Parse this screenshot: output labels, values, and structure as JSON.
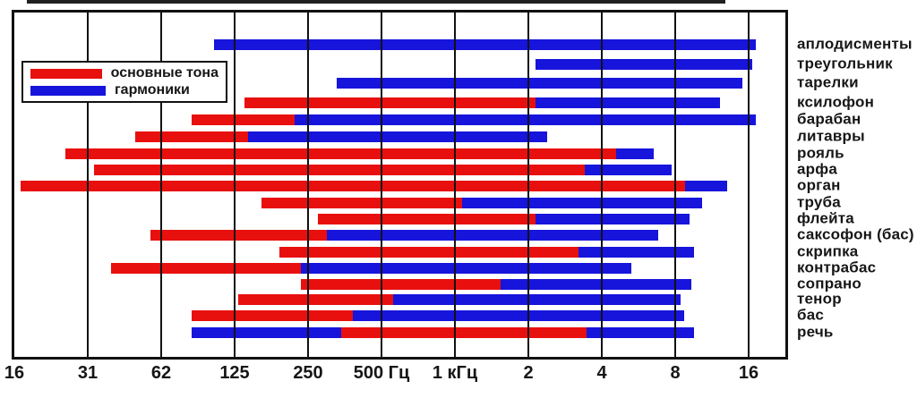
{
  "chart_data": {
    "type": "bar",
    "variant": "horizontal-range-bars-log-x",
    "title": "",
    "x_axis": {
      "scale": "log2-octaves",
      "unit": "Hz",
      "range_hz": [
        16,
        23000
      ],
      "ticks": [
        "16",
        "31",
        "62",
        "125",
        "250",
        "500 Гц",
        "1 кГц",
        "2",
        "4",
        "8",
        "16"
      ]
    },
    "grid": "vertical-octave-lines",
    "legend_position": "top-left-inside",
    "legend": [
      {
        "key": "fundamental",
        "label": "основные тона",
        "color": "#e8100e"
      },
      {
        "key": "harmonics",
        "label": "гармоники",
        "color": "#1714dc"
      }
    ],
    "rows": [
      {
        "label": "аплодисменты",
        "segments": [
          {
            "kind": "harmonics",
            "from_hz": 105,
            "to_hz": 17500
          }
        ]
      },
      {
        "label": "треугольник",
        "segments": [
          {
            "kind": "harmonics",
            "from_hz": 2200,
            "to_hz": 17000
          }
        ]
      },
      {
        "label": "тарелки",
        "segments": [
          {
            "kind": "harmonics",
            "from_hz": 335,
            "to_hz": 15500
          }
        ]
      },
      {
        "label": "ксилофон",
        "segments": [
          {
            "kind": "fundamental",
            "from_hz": 140,
            "to_hz": 2200
          },
          {
            "kind": "harmonics",
            "from_hz": 2200,
            "to_hz": 12500
          }
        ]
      },
      {
        "label": "барабан",
        "segments": [
          {
            "kind": "fundamental",
            "from_hz": 85,
            "to_hz": 225
          },
          {
            "kind": "harmonics",
            "from_hz": 225,
            "to_hz": 17500
          }
        ]
      },
      {
        "label": "литавры",
        "segments": [
          {
            "kind": "fundamental",
            "from_hz": 50,
            "to_hz": 145
          },
          {
            "kind": "harmonics",
            "from_hz": 145,
            "to_hz": 2450
          }
        ]
      },
      {
        "label": "рояль",
        "segments": [
          {
            "kind": "fundamental",
            "from_hz": 26,
            "to_hz": 4700
          },
          {
            "kind": "harmonics",
            "from_hz": 4700,
            "to_hz": 6700
          }
        ]
      },
      {
        "label": "арфа",
        "segments": [
          {
            "kind": "fundamental",
            "from_hz": 34,
            "to_hz": 3500
          },
          {
            "kind": "harmonics",
            "from_hz": 3500,
            "to_hz": 7900
          }
        ]
      },
      {
        "label": "орган",
        "segments": [
          {
            "kind": "fundamental",
            "from_hz": 17,
            "to_hz": 9000
          },
          {
            "kind": "harmonics",
            "from_hz": 9000,
            "to_hz": 13400
          }
        ]
      },
      {
        "label": "труба",
        "segments": [
          {
            "kind": "fundamental",
            "from_hz": 165,
            "to_hz": 1100
          },
          {
            "kind": "harmonics",
            "from_hz": 1100,
            "to_hz": 10600
          }
        ]
      },
      {
        "label": "флейта",
        "segments": [
          {
            "kind": "fundamental",
            "from_hz": 280,
            "to_hz": 2200
          },
          {
            "kind": "harmonics",
            "from_hz": 2200,
            "to_hz": 9400
          }
        ]
      },
      {
        "label": "саксофон (бас)",
        "segments": [
          {
            "kind": "fundamental",
            "from_hz": 58,
            "to_hz": 305
          },
          {
            "kind": "harmonics",
            "from_hz": 305,
            "to_hz": 7000
          }
        ]
      },
      {
        "label": "скрипка",
        "segments": [
          {
            "kind": "fundamental",
            "from_hz": 195,
            "to_hz": 3300
          },
          {
            "kind": "harmonics",
            "from_hz": 3300,
            "to_hz": 9800
          }
        ]
      },
      {
        "label": "контрабас",
        "segments": [
          {
            "kind": "fundamental",
            "from_hz": 40,
            "to_hz": 240
          },
          {
            "kind": "harmonics",
            "from_hz": 240,
            "to_hz": 5400
          }
        ]
      },
      {
        "label": "сопрано",
        "segments": [
          {
            "kind": "fundamental",
            "from_hz": 240,
            "to_hz": 1570
          },
          {
            "kind": "harmonics",
            "from_hz": 1570,
            "to_hz": 9500
          }
        ]
      },
      {
        "label": "тенор",
        "segments": [
          {
            "kind": "fundamental",
            "from_hz": 132,
            "to_hz": 570
          },
          {
            "kind": "harmonics",
            "from_hz": 570,
            "to_hz": 8600
          }
        ]
      },
      {
        "label": "бас",
        "segments": [
          {
            "kind": "fundamental",
            "from_hz": 85,
            "to_hz": 390
          },
          {
            "kind": "harmonics",
            "from_hz": 390,
            "to_hz": 8900
          }
        ]
      },
      {
        "label": "речь",
        "segments": [
          {
            "kind": "harmonics",
            "from_hz": 85,
            "to_hz": 350
          },
          {
            "kind": "fundamental",
            "from_hz": 350,
            "to_hz": 3550
          },
          {
            "kind": "harmonics",
            "from_hz": 3550,
            "to_hz": 9800
          }
        ]
      }
    ]
  }
}
